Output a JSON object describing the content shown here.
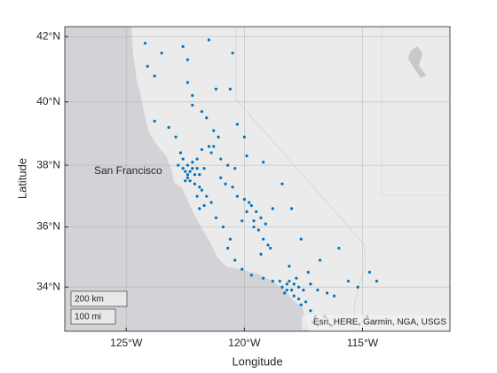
{
  "chart_data": {
    "type": "scatter",
    "x_label": "Longitude",
    "y_label": "Latitude",
    "annotation": "San Francisco",
    "attribution": "Esri, HERE, Garmin, NGA, USGS",
    "scale_bar": [
      "200 km",
      "100 mi"
    ],
    "color": "#0072bd",
    "grid": true,
    "xlim": [
      -127.6,
      -111.3
    ],
    "ylim": [
      32.5,
      42.3
    ],
    "xticks": [
      {
        "value": -125,
        "label": "125°W"
      },
      {
        "value": -120,
        "label": "120°W"
      },
      {
        "value": -115,
        "label": "115°W"
      }
    ],
    "yticks": [
      {
        "value": 34,
        "label": "34°N"
      },
      {
        "value": 36,
        "label": "36°N"
      },
      {
        "value": 38,
        "label": "38°N"
      },
      {
        "value": 40,
        "label": "40°N"
      },
      {
        "value": 42,
        "label": "42°N"
      }
    ],
    "x": [
      -124.2,
      -124.1,
      -123.8,
      -123.5,
      -122.6,
      -122.4,
      -121.5,
      -120.5,
      -122.4,
      -122.2,
      -121.8,
      -121.6,
      -122.2,
      -123.2,
      -123.8,
      -122.9,
      -121.2,
      -120.6,
      -120.3,
      -120.0,
      -121.3,
      -121.1,
      -121.5,
      -121.3,
      -121.8,
      -121.4,
      -121.0,
      -120.7,
      -120.4,
      -122.7,
      -122.6,
      -122.4,
      -122.5,
      -122.4,
      -122.3,
      -122.2,
      -122.1,
      -122.0,
      -121.9,
      -122.3,
      -122.1,
      -121.9,
      -121.8,
      -122.0,
      -121.6,
      -122.6,
      -122.8,
      -122.2,
      -122.0,
      -121.7,
      -122.4,
      -122.5,
      -121.9,
      -121.7,
      -121.4,
      -121.2,
      -120.9,
      -121.0,
      -120.8,
      -120.5,
      -120.3,
      -120.0,
      -119.8,
      -119.7,
      -119.9,
      -119.5,
      -119.3,
      -119.6,
      -119.4,
      -119.2,
      -119.0,
      -118.9,
      -119.3,
      -119.6,
      -120.1,
      -119.1,
      -118.8,
      -120.6,
      -120.7,
      -120.4,
      -120.1,
      -119.7,
      -119.2,
      -118.8,
      -119.9,
      -119.2,
      -118.4,
      -118.0,
      -117.6,
      -118.1,
      -117.3,
      -116.8,
      -116.0,
      -115.6,
      -114.7,
      -115.2,
      -116.5,
      -115.5,
      -114.8,
      -114.4,
      -118.4,
      -118.2,
      -118.0,
      -118.3,
      -117.9,
      -117.7,
      -117.5,
      -117.2,
      -117.9,
      -117.7,
      -118.5,
      -118.1,
      -117.4,
      -117.2,
      -117.1,
      -116.9,
      -117.0,
      -116.6,
      -116.2,
      -116.9,
      -117.6,
      -118.2,
      -116.3,
      -117.8
    ],
    "values": [
      41.8,
      41.1,
      40.8,
      41.5,
      41.7,
      41.3,
      41.9,
      41.5,
      40.6,
      40.2,
      39.7,
      39.5,
      39.9,
      39.2,
      39.4,
      38.9,
      40.4,
      40.4,
      39.3,
      38.9,
      39.1,
      38.9,
      38.6,
      38.6,
      38.5,
      38.4,
      38.2,
      38.0,
      37.9,
      38.4,
      38.2,
      38.0,
      37.8,
      37.7,
      37.8,
      37.9,
      37.7,
      37.9,
      37.7,
      37.5,
      37.4,
      37.3,
      37.2,
      37.0,
      37.0,
      37.9,
      38.0,
      38.1,
      38.2,
      37.9,
      37.6,
      37.5,
      36.6,
      36.7,
      36.8,
      36.3,
      36.0,
      37.6,
      37.4,
      37.3,
      37.0,
      36.9,
      36.8,
      36.7,
      36.5,
      36.5,
      36.3,
      36.2,
      35.9,
      35.6,
      35.4,
      35.3,
      35.1,
      36.0,
      36.2,
      36.1,
      36.6,
      35.6,
      35.3,
      34.9,
      34.6,
      34.4,
      34.3,
      34.2,
      38.3,
      38.1,
      37.4,
      36.6,
      35.6,
      34.7,
      34.5,
      34.9,
      35.3,
      34.2,
      34.5,
      34.0,
      33.8,
      32.8,
      33.0,
      34.2,
      34.0,
      34.1,
      33.9,
      33.8,
      34.1,
      34.0,
      33.9,
      34.1,
      33.7,
      33.6,
      34.2,
      34.2,
      33.5,
      33.2,
      32.8,
      32.7,
      33.0,
      33.0,
      33.7,
      33.9,
      33.4,
      33.9,
      32.7,
      34.3
    ]
  }
}
